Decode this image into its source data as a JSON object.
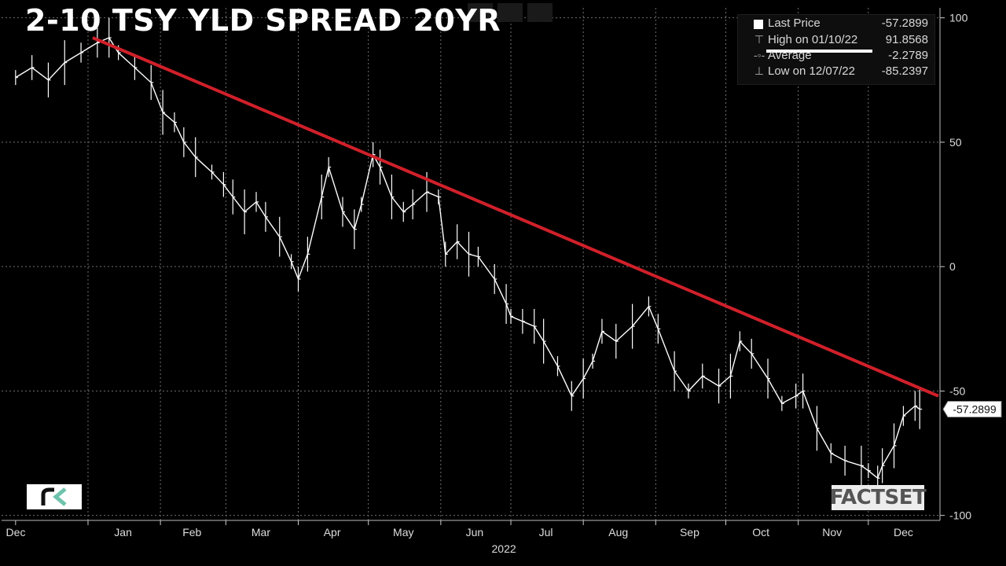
{
  "chart_data": {
    "type": "line",
    "title": "2-10 TSY YLD SPREAD 20YR",
    "ylim": [
      -102,
      104
    ],
    "yticks": [
      100,
      50,
      0,
      -50,
      -100
    ],
    "year_label": "2022",
    "months": [
      "Dec",
      "Jan",
      "Feb",
      "Mar",
      "Apr",
      "May",
      "Jun",
      "Jul",
      "Aug",
      "Sep",
      "Oct",
      "Nov",
      "Dec"
    ],
    "x": [
      "2021-12-01",
      "2021-12-08",
      "2021-12-15",
      "2021-12-22",
      "2021-12-29",
      "2022-01-05",
      "2022-01-10",
      "2022-01-14",
      "2022-01-21",
      "2022-01-28",
      "2022-02-02",
      "2022-02-07",
      "2022-02-11",
      "2022-02-16",
      "2022-02-23",
      "2022-02-28",
      "2022-03-04",
      "2022-03-09",
      "2022-03-14",
      "2022-03-18",
      "2022-03-24",
      "2022-03-29",
      "2022-04-01",
      "2022-04-05",
      "2022-04-11",
      "2022-04-14",
      "2022-04-20",
      "2022-04-25",
      "2022-04-28",
      "2022-05-03",
      "2022-05-06",
      "2022-05-11",
      "2022-05-16",
      "2022-05-20",
      "2022-05-26",
      "2022-05-31",
      "2022-06-03",
      "2022-06-08",
      "2022-06-13",
      "2022-06-17",
      "2022-06-24",
      "2022-06-29",
      "2022-07-01",
      "2022-07-06",
      "2022-07-11",
      "2022-07-15",
      "2022-07-21",
      "2022-07-27",
      "2022-08-01",
      "2022-08-05",
      "2022-08-09",
      "2022-08-15",
      "2022-08-22",
      "2022-08-29",
      "2022-09-02",
      "2022-09-09",
      "2022-09-15",
      "2022-09-21",
      "2022-09-28",
      "2022-10-03",
      "2022-10-07",
      "2022-10-12",
      "2022-10-19",
      "2022-10-25",
      "2022-10-31",
      "2022-11-03",
      "2022-11-09",
      "2022-11-15",
      "2022-11-21",
      "2022-11-28",
      "2022-12-01",
      "2022-12-05",
      "2022-12-07",
      "2022-12-12",
      "2022-12-16",
      "2022-12-21",
      "2022-12-23"
    ],
    "y": [
      76,
      80,
      75,
      82,
      86,
      90,
      92,
      86,
      80,
      74,
      62,
      58,
      50,
      44,
      38,
      33,
      28,
      22,
      26,
      20,
      12,
      2,
      -5,
      5,
      28,
      40,
      22,
      15,
      25,
      45,
      40,
      28,
      22,
      25,
      30,
      28,
      5,
      10,
      5,
      4,
      -5,
      -15,
      -20,
      -22,
      -24,
      -30,
      -40,
      -52,
      -45,
      -38,
      -26,
      -30,
      -24,
      -16,
      -25,
      -42,
      -50,
      -44,
      -48,
      -44,
      -30,
      -35,
      -45,
      -55,
      -52,
      -50,
      -65,
      -75,
      -78,
      -80,
      -82,
      -85,
      -80,
      -72,
      -60,
      -56,
      -57.2899
    ],
    "trendline": {
      "start": [
        "2022-01-03",
        92
      ],
      "end": [
        "2022-12-31",
        -52
      ]
    },
    "last_price_tag": "-57.2899",
    "legend": [
      {
        "label": "Last Price",
        "value": "-57.2899"
      },
      {
        "label": "High on 01/10/22",
        "value": "91.8568"
      },
      {
        "label": "Average",
        "value": "-2.2789"
      },
      {
        "label": "Low on 12/07/22",
        "value": "-85.2397"
      }
    ],
    "grid": true,
    "legend_position": "top-right",
    "colors": {
      "series": "#ffffff",
      "trendline": "#d0202a",
      "grid": "#707070",
      "background": "#000000"
    }
  },
  "logos": {
    "left": "rk",
    "right": "FACTSET"
  }
}
